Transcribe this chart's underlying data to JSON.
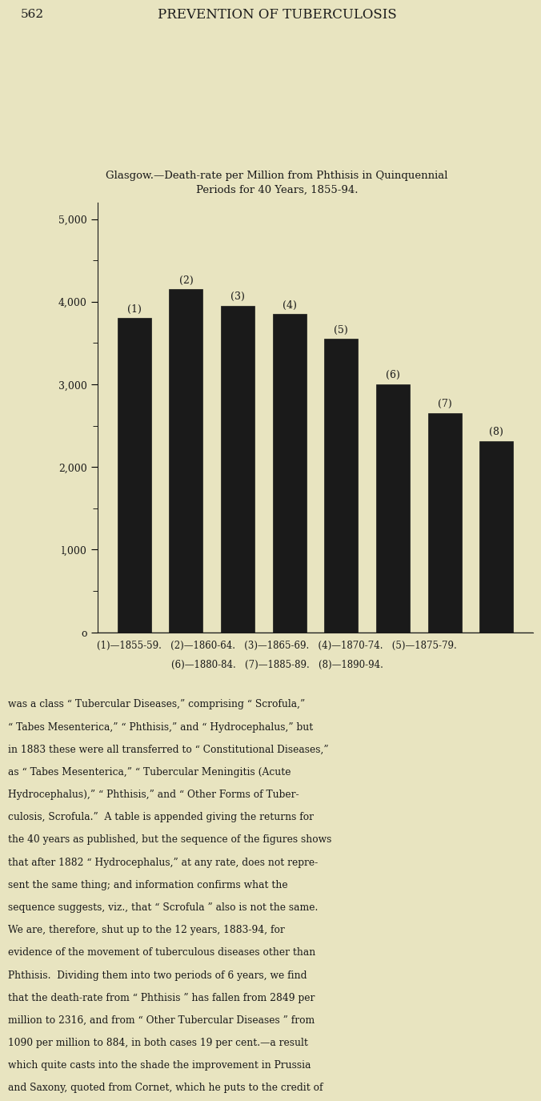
{
  "page_header_num": "562",
  "page_header_title": "PREVENTION OF TUBERCULOSIS",
  "chart_title_line1": "Glasgow.—Death-rate per Million from Phthisis in Quinquennial",
  "chart_title_line2": "Periods for 40 Years, 1855-94.",
  "bar_labels": [
    "(1)",
    "(2)",
    "(3)",
    "(4)",
    "(5)",
    "(6)",
    "(7)",
    "(8)"
  ],
  "bar_values": [
    3800,
    4150,
    3950,
    3850,
    3550,
    3000,
    2650,
    2316
  ],
  "bar_color": "#1a1a1a",
  "yticks": [
    0,
    1000,
    2000,
    3000,
    4000,
    5000
  ],
  "ytick_labels": [
    "o",
    "l,000",
    "2,000",
    "3,000",
    "4,000",
    "5,000"
  ],
  "ymin": 0,
  "ymax": 5200,
  "caption_lines": [
    "(1)—1855-59.   (2)—1860-64.   (3)—1865-69.   (4)—1870-74.   (5)—1875-79.",
    "(6)—1880-84.   (7)—1885-89.   (8)—1890-94."
  ],
  "body_text": "was a class “ Tubercular Diseases,” comprising “ Scrofula,”\n“ Tabes Mesenterica,” “ Phthisis,” and “ Hydrocephalus,” but\nin 1883 these were all transferred to “ Constitutional Diseases,”\nas “ Tabes Mesenterica,” “ Tubercular Meningitis (Acute\nHydrocephalus),” “ Phthisis,” and “ Other Forms of Tuber-\nculosis, Scrofula.”  A table is appended giving the returns for\nthe 40 years as published, but the sequence of the figures shows\nthat after 1882 “ Hydrocephalus,” at any rate, does not repre-\nsent the same thing; and information confirms what the\nsequence suggests, viz., that “ Scrofula ” also is not the same.\nWe are, therefore, shut up to the 12 years, 1883-94, for\nevidence of the movement of tuberculous diseases other than\nPhthisis.  Dividing them into two periods of 6 years, we find\nthat the death-rate from “ Phthisis ” has fallen from 2849 per\nmillion to 2316, and from “ Other Tubercular Diseases ” from\n1090 per million to 884, in both cases 19 per cent.—a result\nwhich quite casts into the shade the improvement in Prussia\nand Saxony, quoted from Cornet, which he puts to the credit of",
  "background_color": "#e8e4c0",
  "text_color": "#1a1a1a",
  "fig_width": 8.0,
  "fig_height": 13.42
}
